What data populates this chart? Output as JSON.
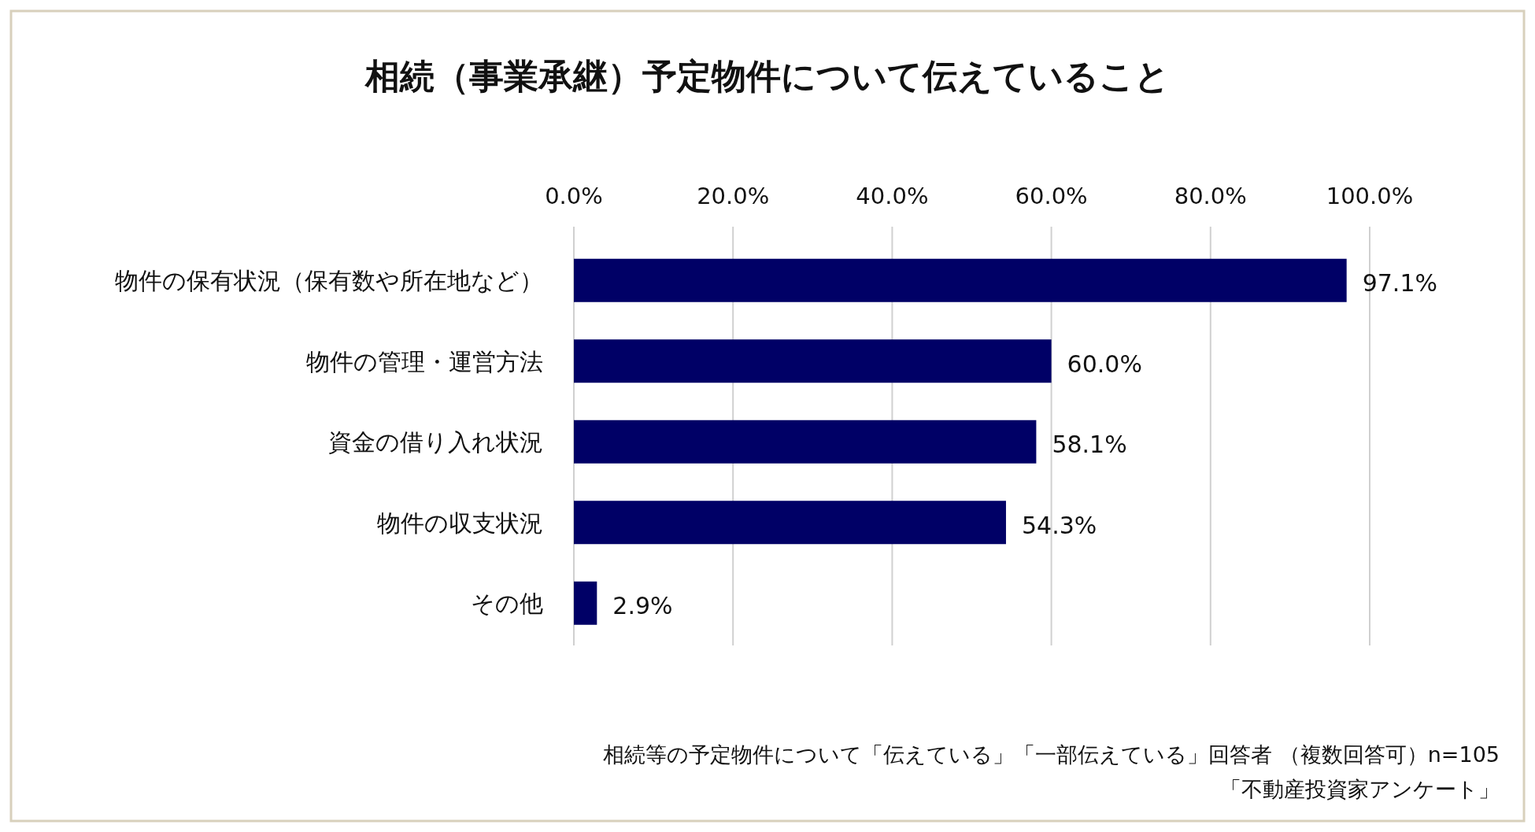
{
  "chart_data": {
    "type": "bar",
    "orientation": "horizontal",
    "title": "相続（事業承継）予定物件について伝えていること",
    "categories": [
      "物件の保有状況（保有数や所在地など）",
      "物件の管理・運営方法",
      "資金の借り入れ状況",
      "物件の収支状況",
      "その他"
    ],
    "values": [
      97.1,
      60.0,
      58.1,
      54.3,
      2.9
    ],
    "value_labels": [
      "97.1%",
      "60.0%",
      "58.1%",
      "54.3%",
      "2.9%"
    ],
    "color": "#000066",
    "xlim": [
      0,
      100
    ],
    "xticks": [
      {
        "value": 0,
        "label": "0.0%"
      },
      {
        "value": 20,
        "label": "20.0%"
      },
      {
        "value": 40,
        "label": "40.0%"
      },
      {
        "value": 60,
        "label": "60.0%"
      },
      {
        "value": 80,
        "label": "80.0%"
      },
      {
        "value": 100,
        "label": "100.0%"
      }
    ],
    "grid": "x",
    "annotations": [
      "相続等の予定物件について「伝えている」「一部伝えている」回答者 （複数回答可）n=105",
      "「不動産投資家アンケート」"
    ]
  }
}
